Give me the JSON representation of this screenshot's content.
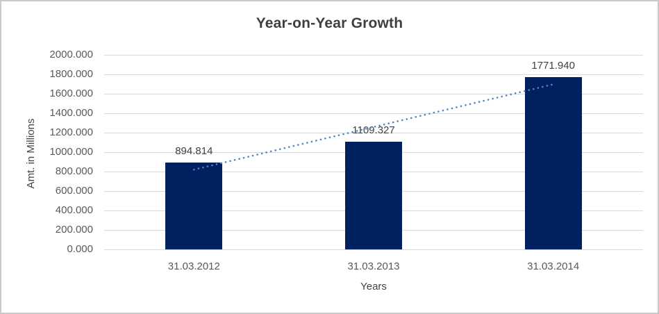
{
  "frame": {
    "background": "#ffffff",
    "border_color": "#c9c9c9"
  },
  "chart_data": {
    "type": "bar",
    "title": "Year-on-Year Growth",
    "categories": [
      "31.03.2012",
      "31.03.2013",
      "31.03.2014"
    ],
    "values": [
      894.814,
      1109.327,
      1771.94
    ],
    "data_labels": [
      "894.814",
      "1109.327",
      "1771.940"
    ],
    "xlabel": "Years",
    "ylabel": "Amt. in Millions",
    "ylim": [
      0,
      2000
    ],
    "ytick_step": 200,
    "ytick_labels": [
      "0.000",
      "200.000",
      "400.000",
      "600.000",
      "800.000",
      "1000.000",
      "1200.000",
      "1400.000",
      "1600.000",
      "1800.000",
      "2000.000"
    ],
    "grid": true,
    "legend": "none",
    "bar_color": "#002060",
    "gridline_color": "#d9d9d9",
    "tick_color": "#595959",
    "data_label_color": "#404040",
    "trendline": {
      "type": "linear",
      "style": "dotted",
      "color": "#4f86c6"
    }
  }
}
